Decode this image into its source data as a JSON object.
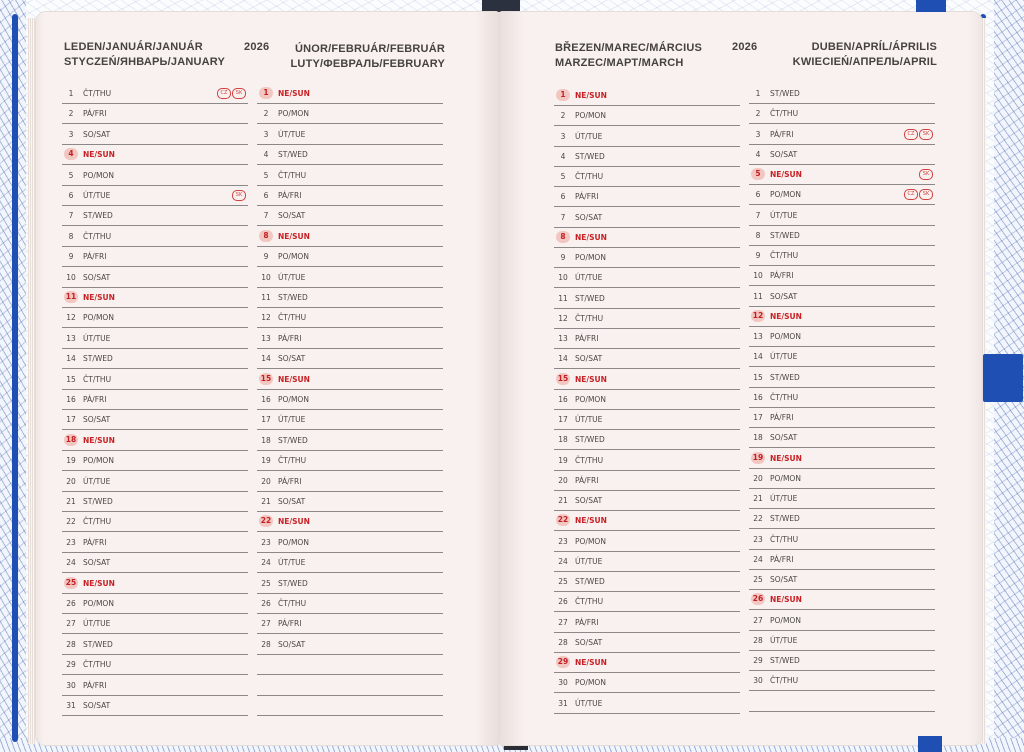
{
  "headers": {
    "left_title_line1": "LEDEN/JANUÁR/JANUÁR",
    "left_title_line2": "STYCZEŃ/ЯНВАРЬ/JANUARY",
    "left_year": "2026",
    "left_title2_line1": "ÚNOR/FEBRUÁR/FEBRUÁR",
    "left_title2_line2": "LUTY/ФЕВРАЛЬ/FEBRUARY",
    "right_title_line1": "BŘEZEN/MAREC/MÁRCIUS",
    "right_title_line2": "MARZEC/МАРТ/MARCH",
    "right_year": "2026",
    "right_title2_line1": "DUBEN/APRÍL/ÁPRILIS",
    "right_title2_line2": "KWIECIEŃ/АПРЕЛЬ/APRIL"
  },
  "months": [
    {
      "key": "january",
      "days": [
        {
          "n": "1",
          "d": "ČT/THU",
          "marks": [
            "CZ",
            "SK"
          ]
        },
        {
          "n": "2",
          "d": "PÁ/FRI"
        },
        {
          "n": "3",
          "d": "SO/SAT"
        },
        {
          "n": "4",
          "d": "NE/SUN",
          "sun": true
        },
        {
          "n": "5",
          "d": "PO/MON"
        },
        {
          "n": "6",
          "d": "ÚT/TUE",
          "marks": [
            "SK"
          ]
        },
        {
          "n": "7",
          "d": "ST/WED"
        },
        {
          "n": "8",
          "d": "ČT/THU"
        },
        {
          "n": "9",
          "d": "PÁ/FRI"
        },
        {
          "n": "10",
          "d": "SO/SAT"
        },
        {
          "n": "11",
          "d": "NE/SUN",
          "sun": true
        },
        {
          "n": "12",
          "d": "PO/MON"
        },
        {
          "n": "13",
          "d": "ÚT/TUE"
        },
        {
          "n": "14",
          "d": "ST/WED"
        },
        {
          "n": "15",
          "d": "ČT/THU"
        },
        {
          "n": "16",
          "d": "PÁ/FRI"
        },
        {
          "n": "17",
          "d": "SO/SAT"
        },
        {
          "n": "18",
          "d": "NE/SUN",
          "sun": true
        },
        {
          "n": "19",
          "d": "PO/MON"
        },
        {
          "n": "20",
          "d": "ÚT/TUE"
        },
        {
          "n": "21",
          "d": "ST/WED"
        },
        {
          "n": "22",
          "d": "ČT/THU"
        },
        {
          "n": "23",
          "d": "PÁ/FRI"
        },
        {
          "n": "24",
          "d": "SO/SAT"
        },
        {
          "n": "25",
          "d": "NE/SUN",
          "sun": true
        },
        {
          "n": "26",
          "d": "PO/MON"
        },
        {
          "n": "27",
          "d": "ÚT/TUE"
        },
        {
          "n": "28",
          "d": "ST/WED"
        },
        {
          "n": "29",
          "d": "ČT/THU"
        },
        {
          "n": "30",
          "d": "PÁ/FRI"
        },
        {
          "n": "31",
          "d": "SO/SAT"
        }
      ]
    },
    {
      "key": "february",
      "days": [
        {
          "n": "1",
          "d": "NE/SUN",
          "sun": true
        },
        {
          "n": "2",
          "d": "PO/MON"
        },
        {
          "n": "3",
          "d": "ÚT/TUE"
        },
        {
          "n": "4",
          "d": "ST/WED"
        },
        {
          "n": "5",
          "d": "ČT/THU"
        },
        {
          "n": "6",
          "d": "PÁ/FRI"
        },
        {
          "n": "7",
          "d": "SO/SAT"
        },
        {
          "n": "8",
          "d": "NE/SUN",
          "sun": true
        },
        {
          "n": "9",
          "d": "PO/MON"
        },
        {
          "n": "10",
          "d": "ÚT/TUE"
        },
        {
          "n": "11",
          "d": "ST/WED"
        },
        {
          "n": "12",
          "d": "ČT/THU"
        },
        {
          "n": "13",
          "d": "PÁ/FRI"
        },
        {
          "n": "14",
          "d": "SO/SAT"
        },
        {
          "n": "15",
          "d": "NE/SUN",
          "sun": true
        },
        {
          "n": "16",
          "d": "PO/MON"
        },
        {
          "n": "17",
          "d": "ÚT/TUE"
        },
        {
          "n": "18",
          "d": "ST/WED"
        },
        {
          "n": "19",
          "d": "ČT/THU"
        },
        {
          "n": "20",
          "d": "PÁ/FRI"
        },
        {
          "n": "21",
          "d": "SO/SAT"
        },
        {
          "n": "22",
          "d": "NE/SUN",
          "sun": true
        },
        {
          "n": "23",
          "d": "PO/MON"
        },
        {
          "n": "24",
          "d": "ÚT/TUE"
        },
        {
          "n": "25",
          "d": "ST/WED"
        },
        {
          "n": "26",
          "d": "ČT/THU"
        },
        {
          "n": "27",
          "d": "PÁ/FRI"
        },
        {
          "n": "28",
          "d": "SO/SAT"
        }
      ]
    },
    {
      "key": "march",
      "days": [
        {
          "n": "1",
          "d": "NE/SUN",
          "sun": true
        },
        {
          "n": "2",
          "d": "PO/MON"
        },
        {
          "n": "3",
          "d": "ÚT/TUE"
        },
        {
          "n": "4",
          "d": "ST/WED"
        },
        {
          "n": "5",
          "d": "ČT/THU"
        },
        {
          "n": "6",
          "d": "PÁ/FRI"
        },
        {
          "n": "7",
          "d": "SO/SAT"
        },
        {
          "n": "8",
          "d": "NE/SUN",
          "sun": true
        },
        {
          "n": "9",
          "d": "PO/MON"
        },
        {
          "n": "10",
          "d": "ÚT/TUE"
        },
        {
          "n": "11",
          "d": "ST/WED"
        },
        {
          "n": "12",
          "d": "ČT/THU"
        },
        {
          "n": "13",
          "d": "PÁ/FRI"
        },
        {
          "n": "14",
          "d": "SO/SAT"
        },
        {
          "n": "15",
          "d": "NE/SUN",
          "sun": true
        },
        {
          "n": "16",
          "d": "PO/MON"
        },
        {
          "n": "17",
          "d": "ÚT/TUE"
        },
        {
          "n": "18",
          "d": "ST/WED"
        },
        {
          "n": "19",
          "d": "ČT/THU"
        },
        {
          "n": "20",
          "d": "PÁ/FRI"
        },
        {
          "n": "21",
          "d": "SO/SAT"
        },
        {
          "n": "22",
          "d": "NE/SUN",
          "sun": true
        },
        {
          "n": "23",
          "d": "PO/MON"
        },
        {
          "n": "24",
          "d": "ÚT/TUE"
        },
        {
          "n": "25",
          "d": "ST/WED"
        },
        {
          "n": "26",
          "d": "ČT/THU"
        },
        {
          "n": "27",
          "d": "PÁ/FRI"
        },
        {
          "n": "28",
          "d": "SO/SAT"
        },
        {
          "n": "29",
          "d": "NE/SUN",
          "sun": true
        },
        {
          "n": "30",
          "d": "PO/MON"
        },
        {
          "n": "31",
          "d": "ÚT/TUE"
        }
      ]
    },
    {
      "key": "april",
      "days": [
        {
          "n": "1",
          "d": "ST/WED"
        },
        {
          "n": "2",
          "d": "ČT/THU"
        },
        {
          "n": "3",
          "d": "PÁ/FRI",
          "marks": [
            "CZ",
            "SK"
          ]
        },
        {
          "n": "4",
          "d": "SO/SAT"
        },
        {
          "n": "5",
          "d": "NE/SUN",
          "sun": true,
          "marks": [
            "SK"
          ]
        },
        {
          "n": "6",
          "d": "PO/MON",
          "marks": [
            "CZ",
            "SK"
          ]
        },
        {
          "n": "7",
          "d": "ÚT/TUE"
        },
        {
          "n": "8",
          "d": "ST/WED"
        },
        {
          "n": "9",
          "d": "ČT/THU"
        },
        {
          "n": "10",
          "d": "PÁ/FRI"
        },
        {
          "n": "11",
          "d": "SO/SAT"
        },
        {
          "n": "12",
          "d": "NE/SUN",
          "sun": true
        },
        {
          "n": "13",
          "d": "PO/MON"
        },
        {
          "n": "14",
          "d": "ÚT/TUE"
        },
        {
          "n": "15",
          "d": "ST/WED"
        },
        {
          "n": "16",
          "d": "ČT/THU"
        },
        {
          "n": "17",
          "d": "PÁ/FRI"
        },
        {
          "n": "18",
          "d": "SO/SAT"
        },
        {
          "n": "19",
          "d": "NE/SUN",
          "sun": true
        },
        {
          "n": "20",
          "d": "PO/MON"
        },
        {
          "n": "21",
          "d": "ÚT/TUE"
        },
        {
          "n": "22",
          "d": "ST/WED"
        },
        {
          "n": "23",
          "d": "ČT/THU"
        },
        {
          "n": "24",
          "d": "PÁ/FRI"
        },
        {
          "n": "25",
          "d": "SO/SAT"
        },
        {
          "n": "26",
          "d": "NE/SUN",
          "sun": true
        },
        {
          "n": "27",
          "d": "PO/MON"
        },
        {
          "n": "28",
          "d": "ÚT/TUE"
        },
        {
          "n": "29",
          "d": "ST/WED"
        },
        {
          "n": "30",
          "d": "ČT/THU"
        }
      ]
    }
  ]
}
